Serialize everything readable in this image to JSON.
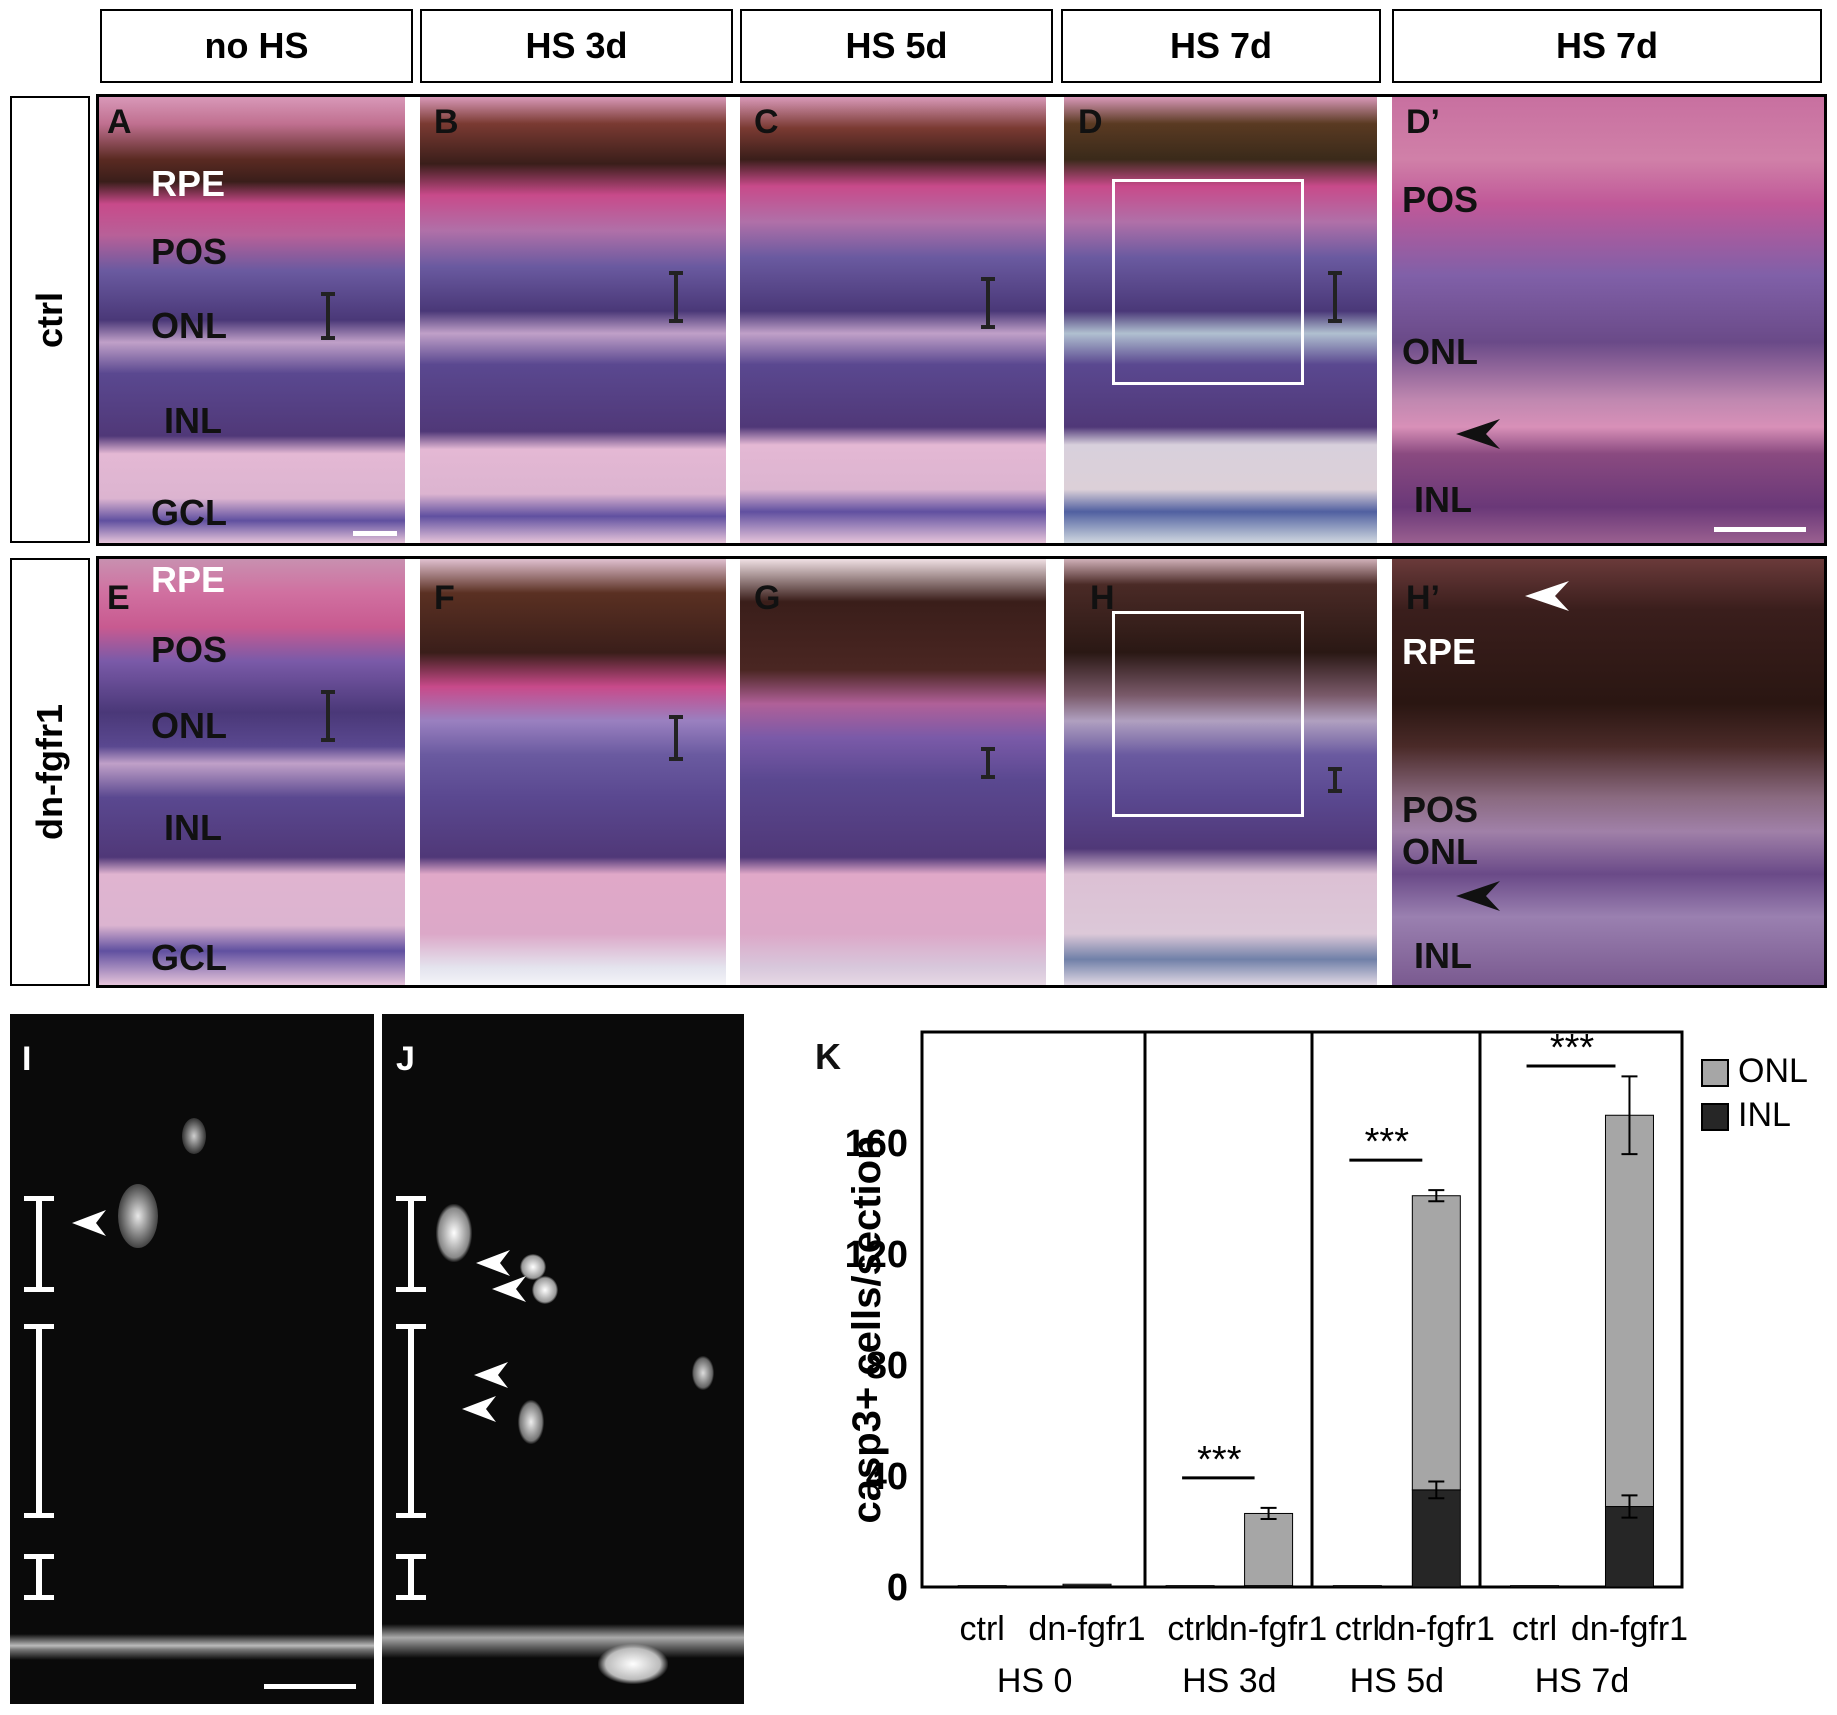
{
  "headers": [
    "no HS",
    "HS 3d",
    "HS 5d",
    "HS 7d",
    "HS 7d"
  ],
  "row_labels": [
    "ctrl",
    "dn-fgfr1"
  ],
  "panel_labels": {
    "top": [
      "A",
      "B",
      "C",
      "D",
      "D’"
    ],
    "bottom": [
      "E",
      "F",
      "G",
      "H",
      "H’"
    ],
    "fluor": [
      "I",
      "J"
    ],
    "chart": "K"
  },
  "layers": {
    "A": [
      "RPE",
      "POS",
      "ONL",
      "INL",
      "GCL"
    ],
    "D_prime": [
      "POS",
      "ONL",
      "INL"
    ],
    "E": [
      "RPE",
      "POS",
      "ONL",
      "INL",
      "GCL"
    ],
    "H_prime": [
      "RPE",
      "POS",
      "ONL",
      "INL"
    ]
  },
  "colors": {
    "stain_pink": "#c8709a",
    "stain_purple": "#5a3f88",
    "pigment": "#3a1e1a",
    "bar_onl": "#a6a6a6",
    "bar_inl": "#262626"
  },
  "chart_data": {
    "type": "bar",
    "stacked": true,
    "ylabel": "casp3+ cells/section",
    "ylim": [
      0,
      200
    ],
    "yticks": [
      0,
      40,
      80,
      120,
      160
    ],
    "groups": [
      "HS 0",
      "HS 3d",
      "HS 5d",
      "HS 7d"
    ],
    "categories": [
      "ctrl",
      "dn-fgfr1"
    ],
    "legend": [
      "ONL",
      "INL"
    ],
    "legend_position": "right",
    "series": [
      {
        "name": "INL",
        "values": [
          [
            0.5,
            0.5
          ],
          [
            0.5,
            0.5
          ],
          [
            0.5,
            35
          ],
          [
            0.5,
            29
          ]
        ],
        "errors": [
          [
            0,
            0
          ],
          [
            0,
            0
          ],
          [
            0,
            3
          ],
          [
            0,
            4
          ]
        ]
      },
      {
        "name": "ONL",
        "values": [
          [
            0,
            0.5
          ],
          [
            0,
            26
          ],
          [
            0,
            106
          ],
          [
            0,
            141
          ]
        ],
        "errors": [
          [
            0,
            0
          ],
          [
            0,
            2
          ],
          [
            0,
            2
          ],
          [
            0,
            14
          ]
        ]
      }
    ],
    "significance": [
      "",
      "***",
      "***",
      "***"
    ]
  }
}
